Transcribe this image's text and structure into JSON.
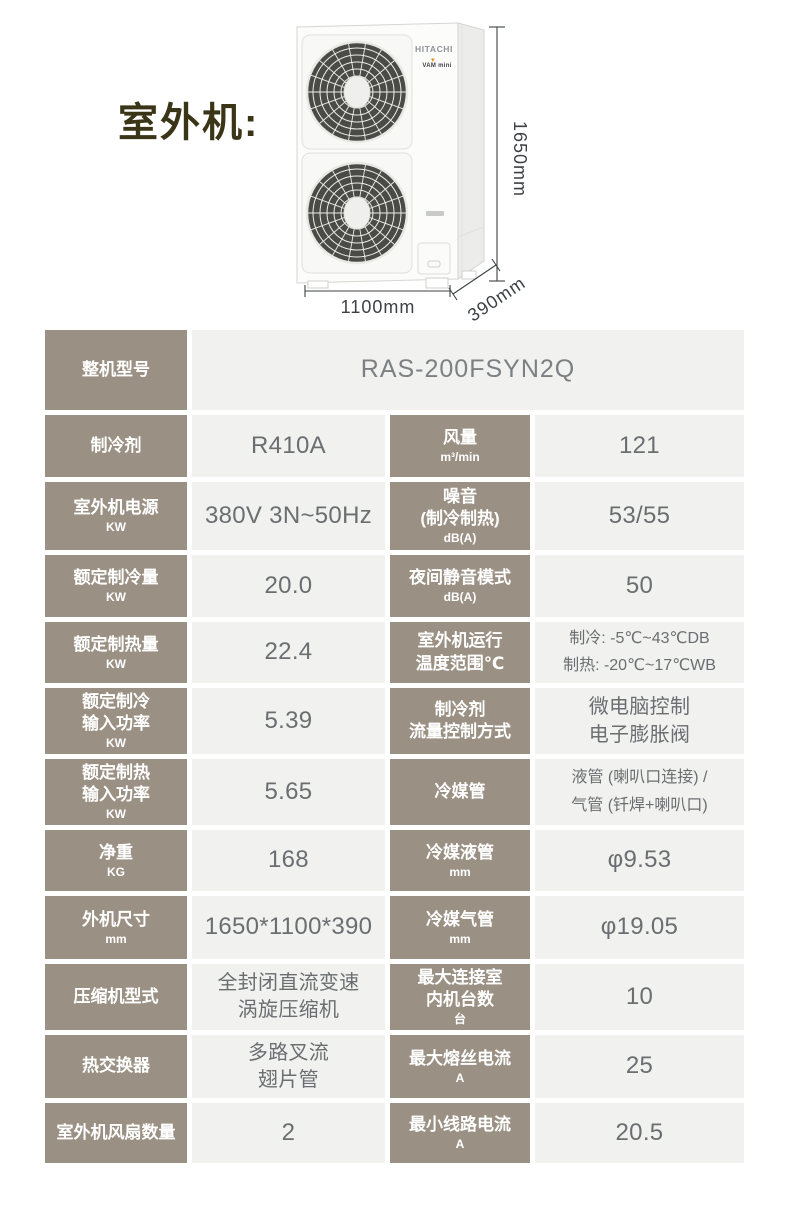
{
  "page": {
    "title": "室外机:"
  },
  "unit_image": {
    "brand": "HITACHI",
    "logo": "VAM mini",
    "dims": {
      "height": "1650mm",
      "width": "1100mm",
      "depth": "390mm"
    }
  },
  "colors": {
    "header_bg": "#9a9083",
    "cell_bg": "#f1f1ef",
    "title_text": "#3b3517",
    "logo_accent_orange": "#f08300",
    "dim_text": "#3e4144"
  },
  "spec": {
    "model_label": "整机型号",
    "model_value": "RAS-200FSYN2Q",
    "rows": [
      {
        "h1": "制冷剂",
        "u1": "",
        "v1": "R410A",
        "h2": "风量",
        "u2": "m³/min",
        "v2": "121"
      },
      {
        "h1": "室外机电源",
        "u1": "KW",
        "v1": "380V 3N~50Hz",
        "h2": "噪音\n(制冷制热)",
        "u2": "dB(A)",
        "v2": "53/55"
      },
      {
        "h1": "额定制冷量",
        "u1": "KW",
        "v1": "20.0",
        "h2": "夜间静音模式",
        "u2": "dB(A)",
        "v2": "50"
      },
      {
        "h1": "额定制热量",
        "u1": "KW",
        "v1": "22.4",
        "h2": "室外机运行\n温度范围℃",
        "u2": "",
        "v2": "制冷: -5℃~43℃DB\n制热: -20℃~17℃WB"
      },
      {
        "h1": "额定制冷\n输入功率",
        "u1": "KW",
        "v1": "5.39",
        "h2": "制冷剂\n流量控制方式",
        "u2": "",
        "v2": "微电脑控制\n电子膨胀阀"
      },
      {
        "h1": "额定制热\n输入功率",
        "u1": "KW",
        "v1": "5.65",
        "h2": "冷媒管",
        "u2": "",
        "v2": "液管 (喇叭口连接) /\n气管 (钎焊+喇叭口)"
      },
      {
        "h1": "净重",
        "u1": "KG",
        "v1": "168",
        "h2": "冷媒液管",
        "u2": "mm",
        "v2": "φ9.53"
      },
      {
        "h1": "外机尺寸",
        "u1": "mm",
        "v1": "1650*1100*390",
        "h2": "冷媒气管",
        "u2": "mm",
        "v2": "φ19.05"
      },
      {
        "h1": "压缩机型式",
        "u1": "",
        "v1": "全封闭直流变速\n涡旋压缩机",
        "h2": "最大连接室\n内机台数",
        "u2": "台",
        "v2": "10"
      },
      {
        "h1": "热交换器",
        "u1": "",
        "v1": "多路叉流\n翅片管",
        "h2": "最大熔丝电流",
        "u2": "A",
        "v2": "25"
      },
      {
        "h1": "室外机风扇数量",
        "u1": "",
        "v1": "2",
        "h2": "最小线路电流",
        "u2": "A",
        "v2": "20.5"
      }
    ]
  }
}
